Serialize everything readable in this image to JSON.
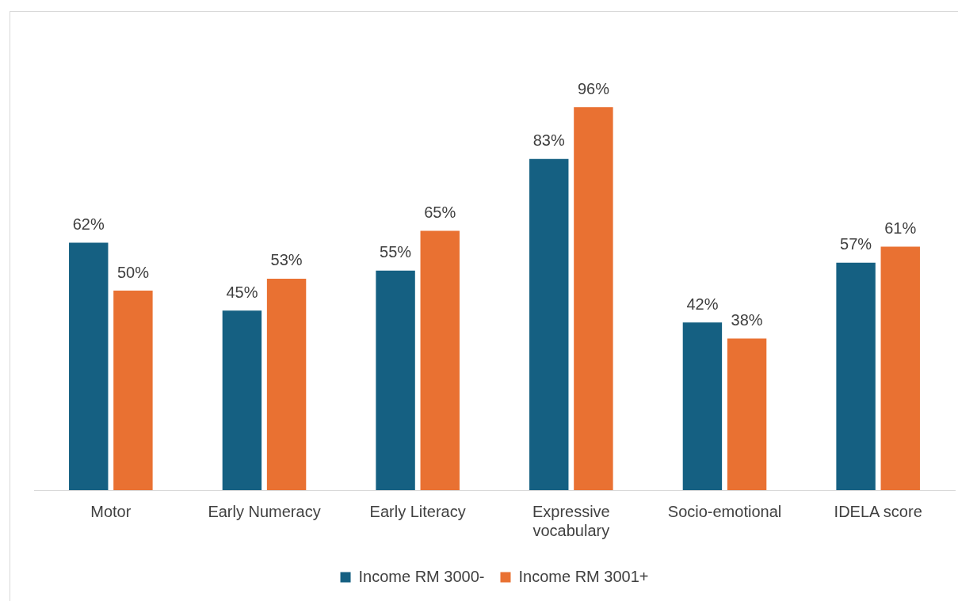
{
  "chart_data": {
    "type": "bar",
    "categories": [
      "Motor",
      "Early Numeracy",
      "Early Literacy",
      "Expressive vocabulary",
      "Socio-emotional",
      "IDELA score"
    ],
    "series": [
      {
        "name": "Income RM 3000-",
        "color": "#156082",
        "values": [
          62,
          45,
          55,
          83,
          42,
          57
        ],
        "value_labels": [
          "62%",
          "45%",
          "55%",
          "83%",
          "42%",
          "57%"
        ]
      },
      {
        "name": "Income RM 3001+",
        "color": "#e97132",
        "values": [
          50,
          53,
          65,
          96,
          38,
          61
        ],
        "value_labels": [
          "50%",
          "53%",
          "65%",
          "96%",
          "38%",
          "61%"
        ]
      }
    ],
    "grid": false,
    "legend": "bottom"
  }
}
